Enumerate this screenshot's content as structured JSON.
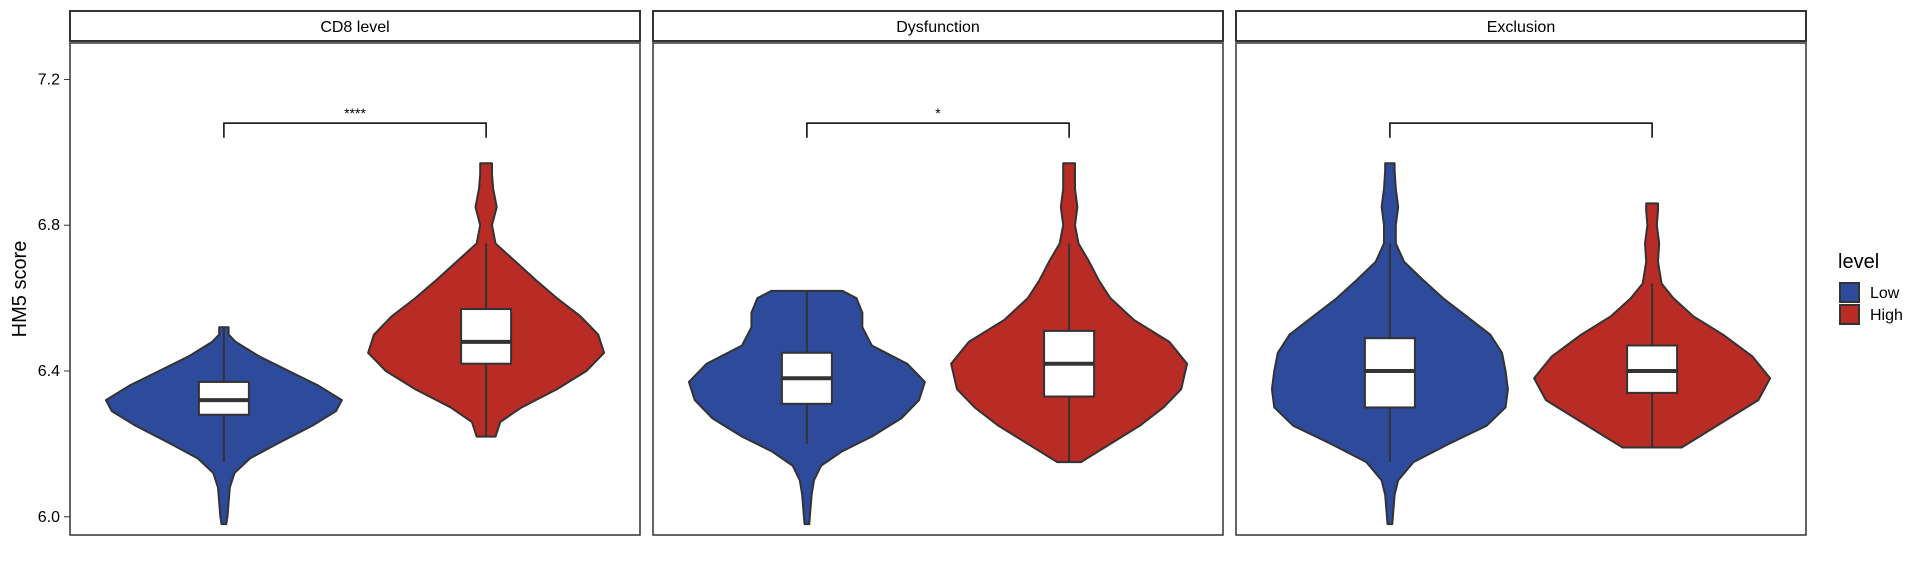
{
  "chart_data": {
    "type": "violin",
    "ylabel": "HM5 score",
    "xlabel": "",
    "ylim": [
      5.95,
      7.3
    ],
    "yticks": [
      "6.0",
      "6.4",
      "6.8",
      "7.2"
    ],
    "grid": false,
    "legend": {
      "title": "level",
      "placement": "right",
      "entries": [
        "Low",
        "High"
      ]
    },
    "colors": {
      "Low": "#2E4A9B",
      "High": "#B82C25",
      "outline": "#333333"
    },
    "panels": [
      {
        "label": "CD8 level",
        "significance": "****",
        "groups": [
          {
            "name": "Low",
            "min": 5.98,
            "q1": 6.28,
            "median": 6.32,
            "q3": 6.37,
            "max": 6.52,
            "whisker_low": 6.15,
            "whisker_high": 6.52,
            "density": [
              [
                5.98,
                0.02
              ],
              [
                6.0,
                0.03
              ],
              [
                6.04,
                0.04
              ],
              [
                6.08,
                0.05
              ],
              [
                6.12,
                0.09
              ],
              [
                6.16,
                0.22
              ],
              [
                6.2,
                0.45
              ],
              [
                6.25,
                0.75
              ],
              [
                6.29,
                0.95
              ],
              [
                6.32,
                1.0
              ],
              [
                6.36,
                0.8
              ],
              [
                6.4,
                0.55
              ],
              [
                6.44,
                0.3
              ],
              [
                6.48,
                0.1
              ],
              [
                6.5,
                0.04
              ],
              [
                6.52,
                0.04
              ]
            ]
          },
          {
            "name": "High",
            "min": 6.22,
            "q1": 6.42,
            "median": 6.48,
            "q3": 6.57,
            "max": 6.97,
            "whisker_low": 6.22,
            "whisker_high": 6.75,
            "density": [
              [
                6.22,
                0.08
              ],
              [
                6.26,
                0.12
              ],
              [
                6.3,
                0.3
              ],
              [
                6.35,
                0.6
              ],
              [
                6.4,
                0.85
              ],
              [
                6.45,
                1.0
              ],
              [
                6.5,
                0.95
              ],
              [
                6.55,
                0.8
              ],
              [
                6.6,
                0.6
              ],
              [
                6.65,
                0.42
              ],
              [
                6.7,
                0.25
              ],
              [
                6.75,
                0.08
              ],
              [
                6.8,
                0.05
              ],
              [
                6.85,
                0.09
              ],
              [
                6.9,
                0.06
              ],
              [
                6.94,
                0.05
              ],
              [
                6.97,
                0.05
              ]
            ]
          }
        ]
      },
      {
        "label": "Dysfunction",
        "significance": "*",
        "groups": [
          {
            "name": "Low",
            "min": 5.98,
            "q1": 6.31,
            "median": 6.38,
            "q3": 6.45,
            "max": 6.62,
            "whisker_low": 6.2,
            "whisker_high": 6.62,
            "density": [
              [
                5.98,
                0.02
              ],
              [
                6.02,
                0.03
              ],
              [
                6.06,
                0.04
              ],
              [
                6.1,
                0.06
              ],
              [
                6.14,
                0.12
              ],
              [
                6.18,
                0.3
              ],
              [
                6.22,
                0.55
              ],
              [
                6.27,
                0.8
              ],
              [
                6.32,
                0.95
              ],
              [
                6.37,
                1.0
              ],
              [
                6.42,
                0.85
              ],
              [
                6.47,
                0.55
              ],
              [
                6.52,
                0.47
              ],
              [
                6.56,
                0.47
              ],
              [
                6.6,
                0.42
              ],
              [
                6.62,
                0.3
              ]
            ]
          },
          {
            "name": "High",
            "min": 6.15,
            "q1": 6.33,
            "median": 6.42,
            "q3": 6.51,
            "max": 6.97,
            "whisker_low": 6.15,
            "whisker_high": 6.75,
            "density": [
              [
                6.15,
                0.1
              ],
              [
                6.2,
                0.35
              ],
              [
                6.25,
                0.6
              ],
              [
                6.3,
                0.8
              ],
              [
                6.35,
                0.95
              ],
              [
                6.42,
                1.0
              ],
              [
                6.48,
                0.85
              ],
              [
                6.54,
                0.55
              ],
              [
                6.6,
                0.35
              ],
              [
                6.65,
                0.25
              ],
              [
                6.7,
                0.17
              ],
              [
                6.75,
                0.08
              ],
              [
                6.8,
                0.05
              ],
              [
                6.85,
                0.07
              ],
              [
                6.9,
                0.05
              ],
              [
                6.94,
                0.05
              ],
              [
                6.97,
                0.05
              ]
            ]
          }
        ]
      },
      {
        "label": "Exclusion",
        "significance": "",
        "groups": [
          {
            "name": "Low",
            "min": 5.98,
            "q1": 6.3,
            "median": 6.4,
            "q3": 6.49,
            "max": 6.97,
            "whisker_low": 6.15,
            "whisker_high": 6.75,
            "density": [
              [
                5.98,
                0.02
              ],
              [
                6.02,
                0.03
              ],
              [
                6.06,
                0.04
              ],
              [
                6.1,
                0.07
              ],
              [
                6.15,
                0.2
              ],
              [
                6.2,
                0.5
              ],
              [
                6.25,
                0.82
              ],
              [
                6.3,
                0.98
              ],
              [
                6.35,
                1.0
              ],
              [
                6.4,
                0.98
              ],
              [
                6.45,
                0.95
              ],
              [
                6.5,
                0.85
              ],
              [
                6.55,
                0.65
              ],
              [
                6.6,
                0.45
              ],
              [
                6.65,
                0.28
              ],
              [
                6.7,
                0.12
              ],
              [
                6.75,
                0.05
              ],
              [
                6.8,
                0.05
              ],
              [
                6.85,
                0.07
              ],
              [
                6.9,
                0.05
              ],
              [
                6.95,
                0.04
              ],
              [
                6.97,
                0.04
              ]
            ]
          },
          {
            "name": "High",
            "min": 6.19,
            "q1": 6.34,
            "median": 6.4,
            "q3": 6.47,
            "max": 6.86,
            "whisker_low": 6.19,
            "whisker_high": 6.64,
            "density": [
              [
                6.19,
                0.25
              ],
              [
                6.22,
                0.4
              ],
              [
                6.27,
                0.65
              ],
              [
                6.32,
                0.9
              ],
              [
                6.38,
                1.0
              ],
              [
                6.44,
                0.85
              ],
              [
                6.5,
                0.6
              ],
              [
                6.55,
                0.35
              ],
              [
                6.6,
                0.18
              ],
              [
                6.64,
                0.08
              ],
              [
                6.7,
                0.05
              ],
              [
                6.75,
                0.06
              ],
              [
                6.8,
                0.04
              ],
              [
                6.84,
                0.05
              ],
              [
                6.86,
                0.05
              ]
            ]
          }
        ]
      }
    ]
  }
}
